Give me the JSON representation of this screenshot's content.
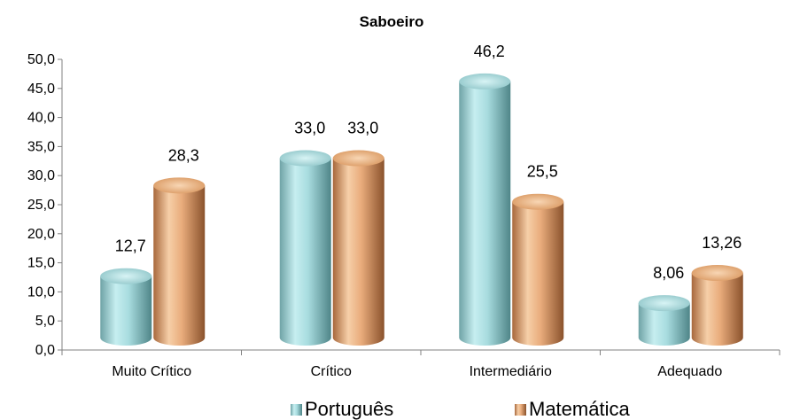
{
  "chart_data": {
    "type": "bar",
    "title": "Saboeiro",
    "categories": [
      "Muito Crítico",
      "Crítico",
      "Intermediário",
      "Adequado"
    ],
    "series": [
      {
        "name": "Português",
        "values": [
          12.7,
          33.0,
          46.2,
          8.06
        ],
        "labels": [
          "12,7",
          "33,0",
          "46,2",
          "8,06"
        ],
        "color": "#9fd3d6"
      },
      {
        "name": "Matemática",
        "values": [
          28.3,
          33.0,
          25.5,
          13.26
        ],
        "labels": [
          "28,3",
          "33,0",
          "25,5",
          "13,26"
        ],
        "color": "#e7a675"
      }
    ],
    "ylim": [
      0,
      50
    ],
    "yticks": [
      "0,0",
      "5,0",
      "10,0",
      "15,0",
      "20,0",
      "25,0",
      "30,0",
      "35,0",
      "40,0",
      "45,0",
      "50,0"
    ],
    "grid": false,
    "legend_position": "bottom",
    "style": "3d-cylinder"
  }
}
